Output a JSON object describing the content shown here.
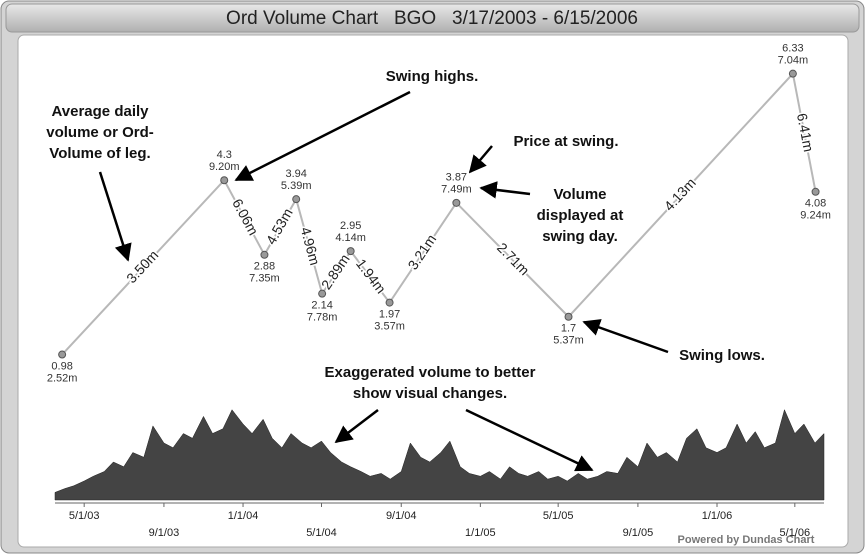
{
  "chart_data": {
    "type": "swing",
    "title": "Ord Volume Chart   BGO   3/17/2003 - 6/15/2006",
    "xlim": [
      "2003-03-17",
      "2006-06-15"
    ],
    "xticks": [
      {
        "value": "2003-05-01",
        "label": "5/1/03"
      },
      {
        "value": "2003-09-01",
        "label": "9/1/03"
      },
      {
        "value": "2004-01-01",
        "label": "1/1/04"
      },
      {
        "value": "2004-05-01",
        "label": "5/1/04"
      },
      {
        "value": "2004-09-01",
        "label": "9/1/04"
      },
      {
        "value": "2005-01-01",
        "label": "1/1/05"
      },
      {
        "value": "2005-05-01",
        "label": "5/1/05"
      },
      {
        "value": "2005-09-01",
        "label": "9/1/05"
      },
      {
        "value": "2006-01-01",
        "label": "1/1/06"
      },
      {
        "value": "2006-05-01",
        "label": "5/1/06"
      }
    ],
    "ylim": [
      0,
      7
    ],
    "swings": {
      "color": "#b8b8b8",
      "x": [
        "2003-03-28",
        "2003-12-03",
        "2004-02-03",
        "2004-03-23",
        "2004-05-02",
        "2004-06-15",
        "2004-08-14",
        "2004-11-25",
        "2005-05-17",
        "2006-04-28",
        "2006-06-02"
      ],
      "values": [
        0.98,
        4.3,
        2.88,
        3.94,
        2.14,
        2.95,
        1.97,
        3.87,
        1.7,
        6.33,
        4.08
      ],
      "volumes": [
        2.52,
        9.2,
        7.35,
        5.39,
        7.78,
        4.14,
        3.57,
        7.49,
        5.37,
        7.04,
        9.24
      ],
      "volume_labels": [
        "2.52m",
        "9.20m",
        "7.35m",
        "5.39m",
        "7.78m",
        "4.14m",
        "3.57m",
        "7.49m",
        "5.37m",
        "7.04m",
        "9.24m"
      ]
    },
    "legs": {
      "values": [
        3.5,
        6.06,
        4.53,
        4.96,
        2.89,
        1.94,
        3.21,
        2.71,
        4.13,
        6.41
      ],
      "value_labels": [
        "3.50m",
        "6.06m",
        "4.53m",
        "4.96m",
        "2.89m",
        "1.94m",
        "3.21m",
        "2.71m",
        "4.13m",
        "6.41m"
      ]
    },
    "volume": {
      "color": "#444444",
      "ylim": [
        0,
        100
      ],
      "x": [
        "2003-03-17",
        "2003-04-01",
        "2003-04-15",
        "2003-05-01",
        "2003-05-15",
        "2003-06-01",
        "2003-06-15",
        "2003-07-01",
        "2003-07-15",
        "2003-08-01",
        "2003-08-15",
        "2003-09-01",
        "2003-09-15",
        "2003-10-01",
        "2003-10-15",
        "2003-11-01",
        "2003-11-15",
        "2003-12-01",
        "2003-12-15",
        "2004-01-01",
        "2004-01-15",
        "2004-02-01",
        "2004-02-15",
        "2004-03-01",
        "2004-03-15",
        "2004-04-01",
        "2004-04-15",
        "2004-05-01",
        "2004-05-15",
        "2004-06-01",
        "2004-06-15",
        "2004-07-01",
        "2004-07-15",
        "2004-08-01",
        "2004-08-15",
        "2004-09-01",
        "2004-09-15",
        "2004-10-01",
        "2004-10-15",
        "2004-11-01",
        "2004-11-15",
        "2004-12-01",
        "2004-12-15",
        "2005-01-01",
        "2005-01-15",
        "2005-02-01",
        "2005-02-15",
        "2005-03-01",
        "2005-03-15",
        "2005-04-01",
        "2005-04-15",
        "2005-05-01",
        "2005-05-15",
        "2005-06-01",
        "2005-06-15",
        "2005-07-01",
        "2005-07-15",
        "2005-08-01",
        "2005-08-15",
        "2005-09-01",
        "2005-09-15",
        "2005-10-01",
        "2005-10-15",
        "2005-11-01",
        "2005-11-15",
        "2005-12-01",
        "2005-12-15",
        "2006-01-01",
        "2006-01-15",
        "2006-02-01",
        "2006-02-15",
        "2006-03-01",
        "2006-03-15",
        "2006-04-01",
        "2006-04-15",
        "2006-05-01",
        "2006-05-15",
        "2006-06-01",
        "2006-06-15"
      ],
      "values": [
        8,
        12,
        15,
        20,
        25,
        30,
        40,
        35,
        50,
        45,
        78,
        60,
        55,
        70,
        65,
        88,
        70,
        75,
        95,
        80,
        70,
        85,
        65,
        55,
        70,
        60,
        55,
        62,
        50,
        40,
        35,
        30,
        25,
        28,
        22,
        30,
        60,
        45,
        40,
        50,
        62,
        35,
        28,
        25,
        30,
        22,
        35,
        28,
        25,
        30,
        22,
        25,
        20,
        28,
        22,
        25,
        30,
        28,
        45,
        35,
        60,
        45,
        50,
        40,
        65,
        75,
        55,
        50,
        55,
        80,
        60,
        72,
        55,
        60,
        95,
        70,
        80,
        60,
        70
      ]
    },
    "annotations": [
      {
        "lines": [
          "Swing highs."
        ]
      },
      {
        "lines": [
          "Average daily",
          "volume or Ord-",
          "Volume of leg."
        ]
      },
      {
        "lines": [
          "Price at swing."
        ]
      },
      {
        "lines": [
          "Volume",
          "displayed at",
          "swing day."
        ]
      },
      {
        "lines": [
          "Swing lows."
        ]
      },
      {
        "lines": [
          "Exaggerated volume to better",
          "show visual changes."
        ]
      }
    ],
    "credit": "Powered by Dundas Chart"
  }
}
